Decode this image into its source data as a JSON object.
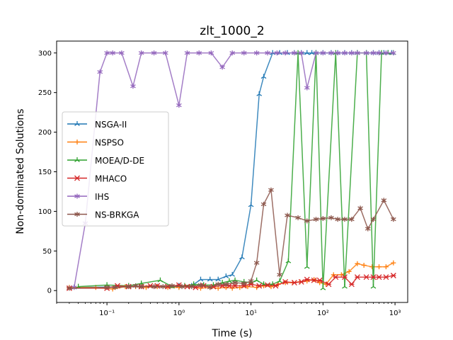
{
  "chart_data": {
    "type": "line",
    "title": "zlt_1000_2",
    "xlabel": "Time (s)",
    "ylabel": "Non-dominated Solutions",
    "x_scale": "log",
    "xlim": [
      0.02,
      1500
    ],
    "ylim": [
      -15,
      315
    ],
    "x_ticks": [
      {
        "value": 0.1,
        "label": "10⁻¹"
      },
      {
        "value": 1,
        "label": "10⁰"
      },
      {
        "value": 10,
        "label": "10¹"
      },
      {
        "value": 100,
        "label": "10²"
      },
      {
        "value": 1000,
        "label": "10³"
      }
    ],
    "y_ticks": [
      0,
      50,
      100,
      150,
      200,
      250,
      300
    ],
    "grid": false,
    "legend_position": "center-left",
    "series": [
      {
        "name": "NSGA-II",
        "color": "#1f77b4",
        "marker": "tri",
        "x": [
          0.035,
          0.5,
          0.7,
          1.0,
          1.5,
          2.0,
          2.7,
          3.5,
          4.5,
          5.5,
          7.5,
          10,
          13,
          15,
          20,
          25,
          32,
          40,
          50,
          60,
          70,
          80,
          100,
          130,
          160,
          200,
          250,
          300,
          400,
          500,
          600,
          700,
          800,
          900
        ],
        "y": [
          4,
          5,
          5,
          6,
          6,
          14,
          14,
          14,
          18,
          20,
          42,
          108,
          248,
          270,
          300,
          300,
          300,
          300,
          300,
          300,
          300,
          300,
          300,
          300,
          300,
          300,
          300,
          300,
          300,
          300,
          300,
          300,
          300,
          300
        ]
      },
      {
        "name": "NSPSO",
        "color": "#ff7f0e",
        "marker": "plus",
        "x": [
          0.03,
          0.07,
          0.12,
          0.18,
          0.25,
          0.35,
          0.5,
          0.7,
          1.0,
          1.4,
          2.0,
          2.7,
          3.5,
          4.5,
          5.5,
          7,
          9,
          12,
          15,
          19,
          24,
          30,
          38,
          48,
          60,
          75,
          90,
          110,
          140,
          180,
          230,
          300,
          370,
          480,
          600,
          750,
          950
        ],
        "y": [
          4,
          4,
          2,
          5,
          5,
          4,
          5,
          4,
          4,
          5,
          3,
          4,
          3,
          4,
          3,
          4,
          5,
          4,
          6,
          5,
          8,
          10,
          10,
          11,
          12,
          14,
          10,
          8,
          20,
          20,
          24,
          34,
          32,
          30,
          30,
          30,
          35
        ]
      },
      {
        "name": "MOEA/D-DE",
        "color": "#2ca02c",
        "marker": "tri",
        "x": [
          0.04,
          0.1,
          0.2,
          0.3,
          0.55,
          0.8,
          1.2,
          1.6,
          2.2,
          3,
          4,
          5,
          6,
          8,
          10,
          12,
          15,
          20,
          25,
          33,
          45,
          60,
          80,
          100,
          150,
          200,
          300,
          400,
          500,
          650,
          800,
          950
        ],
        "y": [
          5,
          7,
          6,
          9,
          13,
          5,
          6,
          8,
          7,
          7,
          10,
          12,
          13,
          11,
          10,
          13,
          8,
          8,
          12,
          37,
          300,
          30,
          300,
          3,
          300,
          5,
          300,
          300,
          5,
          300,
          300,
          300
        ]
      },
      {
        "name": "MHACO",
        "color": "#d62728",
        "marker": "x",
        "x": [
          0.03,
          0.1,
          0.14,
          0.2,
          0.3,
          0.4,
          0.5,
          0.7,
          1.0,
          1.3,
          1.7,
          2.2,
          3,
          4,
          5,
          6,
          8,
          10,
          13,
          17,
          22,
          30,
          40,
          50,
          60,
          75,
          90,
          120,
          150,
          200,
          250,
          300,
          400,
          500,
          600,
          750,
          950
        ],
        "y": [
          3,
          3,
          6,
          5,
          5,
          6,
          6,
          5,
          7,
          5,
          4,
          6,
          5,
          6,
          6,
          6,
          6,
          8,
          6,
          7,
          6,
          11,
          10,
          11,
          14,
          13,
          13,
          8,
          17,
          17,
          8,
          17,
          17,
          17,
          17,
          17,
          19
        ]
      },
      {
        "name": "IHS",
        "color": "#9467bd",
        "marker": "star",
        "x": [
          0.035,
          0.05,
          0.08,
          0.1,
          0.12,
          0.16,
          0.23,
          0.3,
          0.45,
          0.65,
          1.0,
          1.3,
          1.9,
          2.8,
          4.0,
          5.5,
          8,
          12,
          17,
          23,
          30,
          40,
          50,
          60,
          80,
          100,
          130,
          160,
          200,
          250,
          300,
          400,
          500,
          600,
          750,
          950
        ],
        "y": [
          4,
          85,
          276,
          300,
          300,
          300,
          258,
          300,
          300,
          300,
          234,
          300,
          300,
          300,
          282,
          300,
          300,
          300,
          300,
          300,
          300,
          300,
          300,
          256,
          300,
          300,
          300,
          300,
          300,
          300,
          300,
          300,
          300,
          300,
          300,
          300
        ]
      },
      {
        "name": "NS-BRKGA",
        "color": "#8c564b",
        "marker": "star",
        "x": [
          0.03,
          0.1,
          0.13,
          0.2,
          0.25,
          0.3,
          0.45,
          0.6,
          0.8,
          1.1,
          1.5,
          2.0,
          2.7,
          3.5,
          4.5,
          6,
          8,
          10,
          12,
          15,
          19,
          25,
          32,
          45,
          60,
          80,
          100,
          130,
          160,
          200,
          250,
          330,
          420,
          500,
          700,
          950
        ],
        "y": [
          3,
          4,
          4,
          5,
          6,
          5,
          5,
          5,
          6,
          5,
          5,
          7,
          4,
          8,
          8,
          10,
          9,
          12,
          35,
          109,
          127,
          20,
          95,
          92,
          88,
          90,
          91,
          92,
          90,
          90,
          90,
          104,
          78,
          90,
          114,
          90
        ]
      }
    ]
  }
}
